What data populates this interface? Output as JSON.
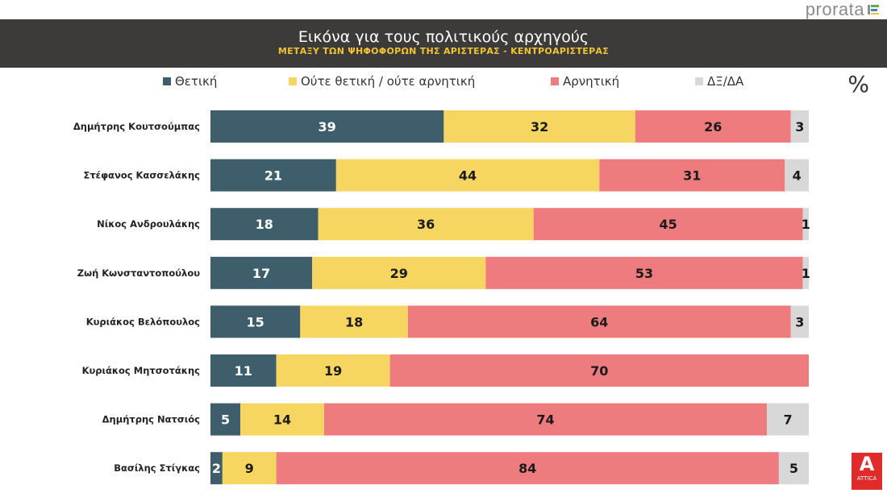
{
  "brand": "prorata",
  "colors": {
    "header_bg": "#3c3b3a",
    "positive": "#3f5e6b",
    "neutral": "#f7d561",
    "negative": "#ee7c7e",
    "dk": "#d8d8d8"
  },
  "unit_symbol": "%",
  "channel_logo": {
    "letter": "A",
    "text": "ATTICA"
  },
  "chart_data": {
    "type": "bar",
    "orientation": "horizontal",
    "stacked": true,
    "title": "Εικόνα για τους πολιτικούς αρχηγούς",
    "subtitle": "ΜΕΤΑΞΥ ΤΩΝ ΨΗΦΟΦΟΡΩΝ ΤΗΣ ΑΡΙΣΤΕΡΑΣ - ΚΕΝΤΡΟΑΡΙΣΤΕΡΑΣ",
    "xlim": [
      0,
      100
    ],
    "legend": [
      "Θετική",
      "Ούτε θετική / ούτε αρνητική",
      "Αρνητική",
      "ΔΞ/ΔΑ"
    ],
    "categories": [
      "Δημήτρης Κουτσούμπας",
      "Στέφανος Κασσελάκης",
      "Νίκος Ανδρουλάκης",
      "Ζωή Κωνσταντοπούλου",
      "Κυριάκος Βελόπουλος",
      "Κυριάκος Μητσοτάκης",
      "Δημήτρης Νατσιός",
      "Βασίλης Στίγκας"
    ],
    "series": [
      {
        "name": "Θετική",
        "values": [
          39,
          21,
          18,
          17,
          15,
          11,
          5,
          2
        ]
      },
      {
        "name": "Ούτε θετική / ούτε αρνητική",
        "values": [
          32,
          44,
          36,
          29,
          18,
          19,
          14,
          9
        ]
      },
      {
        "name": "Αρνητική",
        "values": [
          26,
          31,
          45,
          53,
          64,
          70,
          74,
          84
        ]
      },
      {
        "name": "ΔΞ/ΔΑ",
        "values": [
          3,
          4,
          1,
          1,
          3,
          null,
          7,
          5
        ]
      }
    ]
  }
}
